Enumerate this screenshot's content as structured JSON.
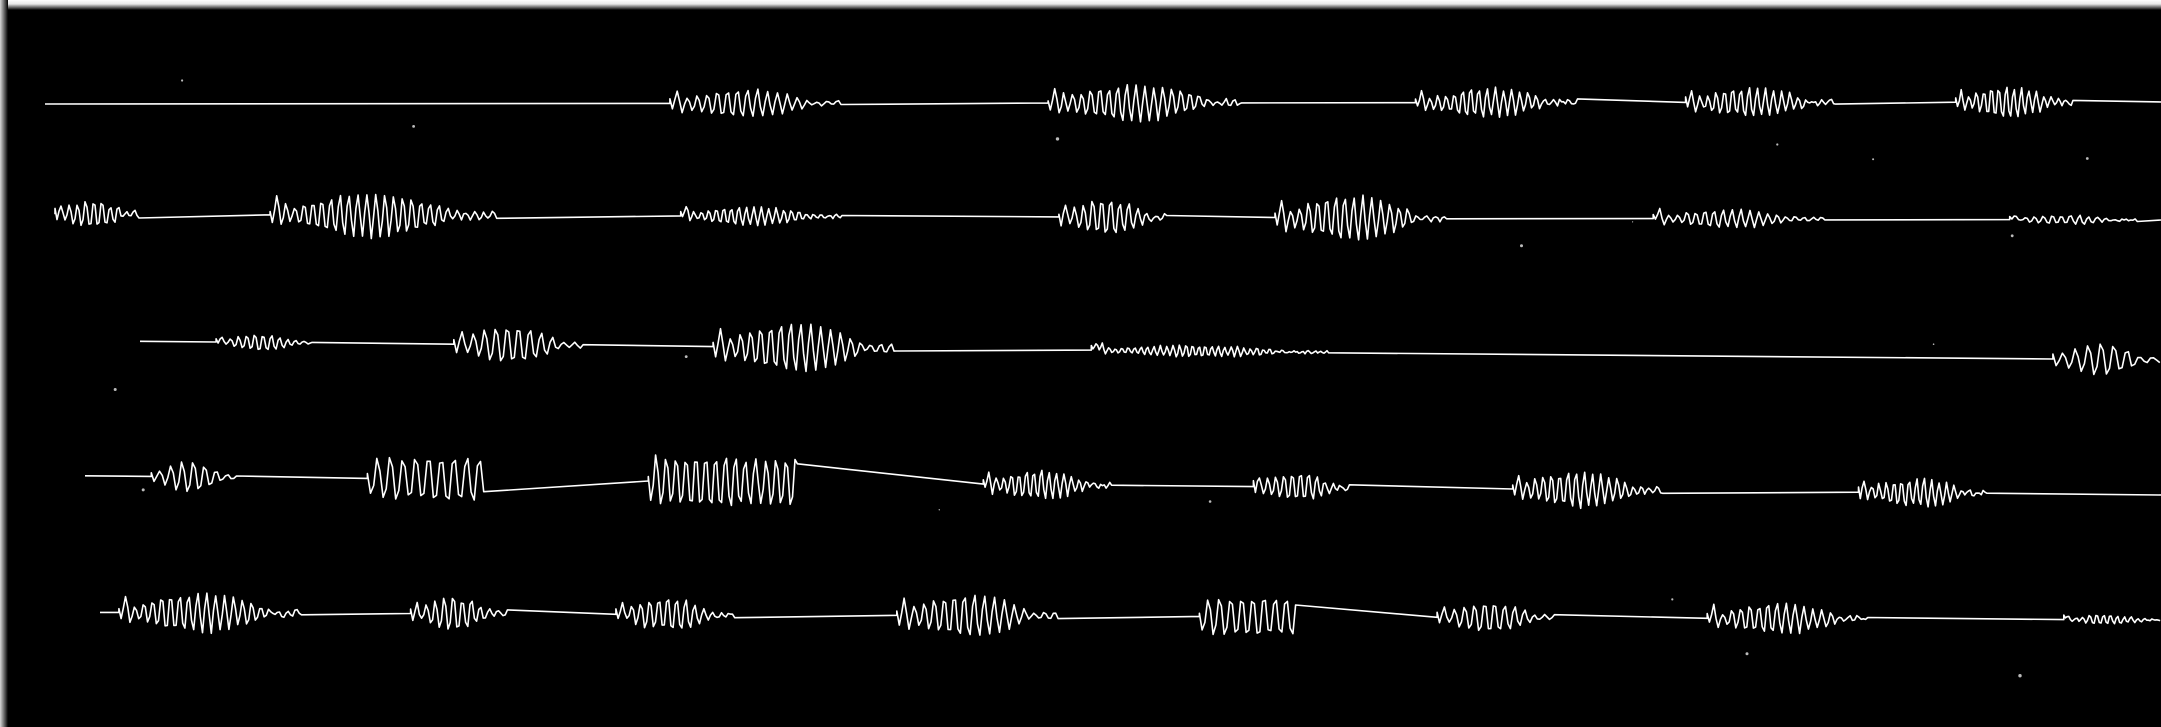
{
  "figure": {
    "description_type": "oscillographic phonautogram plate",
    "background_color": "#000000",
    "trace_color": "#ffffff",
    "row_count": 5
  },
  "rows": [
    {
      "id": "row-1",
      "bursts": [
        {
          "start": 0.31,
          "end": 0.39,
          "amp": 0.55,
          "freq": 0.9,
          "style": "even"
        },
        {
          "start": 0.485,
          "end": 0.575,
          "amp": 0.7,
          "freq": 1.0,
          "style": "dense"
        },
        {
          "start": 0.655,
          "end": 0.73,
          "amp": 0.55,
          "freq": 1.1,
          "style": "dense"
        },
        {
          "start": 0.78,
          "end": 0.85,
          "amp": 0.55,
          "freq": 1.1,
          "style": "dense"
        },
        {
          "start": 0.905,
          "end": 0.96,
          "amp": 0.6,
          "freq": 1.2,
          "style": "dense"
        }
      ]
    },
    {
      "id": "row-2",
      "bursts": [
        {
          "start": 0.025,
          "end": 0.065,
          "amp": 0.55,
          "freq": 1.1,
          "style": "dense"
        },
        {
          "start": 0.125,
          "end": 0.23,
          "amp": 0.85,
          "freq": 1.0,
          "style": "dense"
        },
        {
          "start": 0.315,
          "end": 0.39,
          "amp": 0.5,
          "freq": 1.2,
          "style": "faint"
        },
        {
          "start": 0.49,
          "end": 0.54,
          "amp": 0.7,
          "freq": 1.0,
          "style": "dense"
        },
        {
          "start": 0.59,
          "end": 0.67,
          "amp": 0.85,
          "freq": 1.0,
          "style": "dense"
        },
        {
          "start": 0.765,
          "end": 0.845,
          "amp": 0.35,
          "freq": 1.0,
          "style": "broken"
        },
        {
          "start": 0.93,
          "end": 0.99,
          "amp": 0.25,
          "freq": 1.0,
          "style": "faint"
        }
      ]
    },
    {
      "id": "row-3",
      "bursts": [
        {
          "start": 0.1,
          "end": 0.145,
          "amp": 0.45,
          "freq": 1.1,
          "style": "faint"
        },
        {
          "start": 0.21,
          "end": 0.27,
          "amp": 0.75,
          "freq": 0.8,
          "style": "even"
        },
        {
          "start": 0.33,
          "end": 0.415,
          "amp": 0.95,
          "freq": 0.9,
          "style": "even"
        },
        {
          "start": 0.505,
          "end": 0.615,
          "amp": 0.3,
          "freq": 1.4,
          "style": "faint"
        },
        {
          "start": 0.95,
          "end": 1.0,
          "amp": 0.65,
          "freq": 0.7,
          "style": "even"
        }
      ]
    },
    {
      "id": "row-4",
      "bursts": [
        {
          "start": 0.07,
          "end": 0.11,
          "amp": 0.6,
          "freq": 0.8,
          "style": "even"
        },
        {
          "start": 0.17,
          "end": 0.225,
          "amp": 0.8,
          "freq": 0.7,
          "style": "spiky"
        },
        {
          "start": 0.3,
          "end": 0.37,
          "amp": 0.9,
          "freq": 0.9,
          "style": "spiky"
        },
        {
          "start": 0.455,
          "end": 0.515,
          "amp": 0.55,
          "freq": 1.2,
          "style": "dense"
        },
        {
          "start": 0.58,
          "end": 0.625,
          "amp": 0.55,
          "freq": 1.1,
          "style": "dense"
        },
        {
          "start": 0.7,
          "end": 0.77,
          "amp": 0.7,
          "freq": 1.1,
          "style": "dense"
        },
        {
          "start": 0.86,
          "end": 0.92,
          "amp": 0.55,
          "freq": 1.2,
          "style": "dense"
        }
      ]
    },
    {
      "id": "row-5",
      "bursts": [
        {
          "start": 0.055,
          "end": 0.14,
          "amp": 0.75,
          "freq": 1.0,
          "style": "dense"
        },
        {
          "start": 0.19,
          "end": 0.235,
          "amp": 0.65,
          "freq": 1.0,
          "style": "dense"
        },
        {
          "start": 0.285,
          "end": 0.34,
          "amp": 0.65,
          "freq": 1.0,
          "style": "dense"
        },
        {
          "start": 0.415,
          "end": 0.49,
          "amp": 0.85,
          "freq": 0.9,
          "style": "even"
        },
        {
          "start": 0.555,
          "end": 0.6,
          "amp": 0.7,
          "freq": 0.8,
          "style": "spiky"
        },
        {
          "start": 0.665,
          "end": 0.72,
          "amp": 0.6,
          "freq": 0.9,
          "style": "even"
        },
        {
          "start": 0.79,
          "end": 0.865,
          "amp": 0.6,
          "freq": 1.0,
          "style": "dense"
        },
        {
          "start": 0.955,
          "end": 1.0,
          "amp": 0.25,
          "freq": 1.3,
          "style": "faint"
        }
      ]
    }
  ]
}
